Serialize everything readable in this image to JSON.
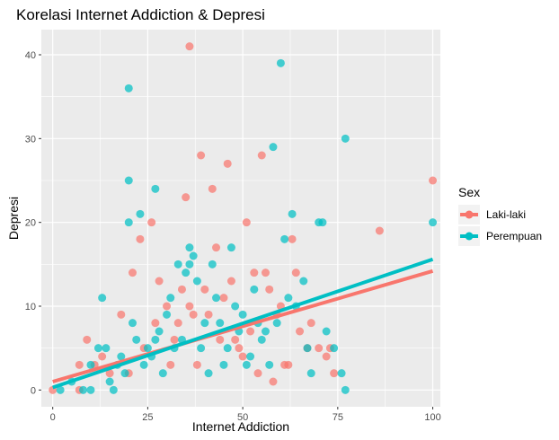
{
  "chart_data": {
    "type": "scatter",
    "title": "Korelasi Internet Addiction & Depresi",
    "xlabel": "Internet Addiction",
    "ylabel": "Depresi",
    "xlim": [
      -3,
      102
    ],
    "ylim": [
      -2,
      43
    ],
    "x_ticks": [
      0,
      25,
      50,
      75,
      100
    ],
    "y_ticks": [
      0,
      10,
      20,
      30,
      40
    ],
    "grid": true,
    "legend": {
      "title": "Sex",
      "position": "right"
    },
    "series": [
      {
        "name": "Laki-laki",
        "color": "#F8766D",
        "trend": {
          "x": [
            0,
            100
          ],
          "y": [
            1.0,
            14.2
          ]
        },
        "points": [
          [
            0,
            0
          ],
          [
            7,
            3
          ],
          [
            7,
            0
          ],
          [
            9,
            6
          ],
          [
            11,
            3
          ],
          [
            13,
            4
          ],
          [
            15,
            2
          ],
          [
            18,
            9
          ],
          [
            20,
            2
          ],
          [
            21,
            14
          ],
          [
            23,
            18
          ],
          [
            24,
            5
          ],
          [
            26,
            20
          ],
          [
            27,
            8
          ],
          [
            28,
            13
          ],
          [
            30,
            10
          ],
          [
            31,
            3
          ],
          [
            32,
            6
          ],
          [
            33,
            8
          ],
          [
            34,
            12
          ],
          [
            35,
            23
          ],
          [
            36,
            41
          ],
          [
            36,
            10
          ],
          [
            37,
            9
          ],
          [
            38,
            3
          ],
          [
            39,
            28
          ],
          [
            40,
            12
          ],
          [
            41,
            9
          ],
          [
            42,
            24
          ],
          [
            43,
            17
          ],
          [
            44,
            6
          ],
          [
            45,
            11
          ],
          [
            46,
            27
          ],
          [
            47,
            13
          ],
          [
            48,
            6
          ],
          [
            49,
            5
          ],
          [
            50,
            4
          ],
          [
            51,
            20
          ],
          [
            52,
            7
          ],
          [
            53,
            14
          ],
          [
            54,
            2
          ],
          [
            55,
            28
          ],
          [
            56,
            14
          ],
          [
            57,
            12
          ],
          [
            58,
            1
          ],
          [
            59,
            9
          ],
          [
            60,
            10
          ],
          [
            61,
            3
          ],
          [
            62,
            3
          ],
          [
            63,
            18
          ],
          [
            64,
            14
          ],
          [
            65,
            7
          ],
          [
            67,
            5
          ],
          [
            68,
            8
          ],
          [
            70,
            5
          ],
          [
            72,
            4
          ],
          [
            73,
            5
          ],
          [
            74,
            2
          ],
          [
            86,
            19
          ],
          [
            100,
            25
          ]
        ]
      },
      {
        "name": "Perempuan",
        "color": "#00BFC4",
        "trend": {
          "x": [
            0,
            100
          ],
          "y": [
            0.3,
            15.6
          ]
        },
        "points": [
          [
            2,
            0
          ],
          [
            5,
            1
          ],
          [
            8,
            0
          ],
          [
            10,
            0
          ],
          [
            10,
            3
          ],
          [
            12,
            5
          ],
          [
            13,
            11
          ],
          [
            14,
            5
          ],
          [
            15,
            1
          ],
          [
            16,
            0
          ],
          [
            17,
            3
          ],
          [
            18,
            4
          ],
          [
            19,
            2
          ],
          [
            20,
            36
          ],
          [
            20,
            25
          ],
          [
            20,
            20
          ],
          [
            21,
            8
          ],
          [
            22,
            6
          ],
          [
            23,
            21
          ],
          [
            24,
            3
          ],
          [
            25,
            5
          ],
          [
            26,
            4
          ],
          [
            27,
            24
          ],
          [
            27,
            6
          ],
          [
            28,
            7
          ],
          [
            29,
            2
          ],
          [
            30,
            9
          ],
          [
            31,
            11
          ],
          [
            32,
            5
          ],
          [
            33,
            15
          ],
          [
            34,
            6
          ],
          [
            35,
            14
          ],
          [
            36,
            17
          ],
          [
            36,
            15
          ],
          [
            37,
            16
          ],
          [
            38,
            13
          ],
          [
            39,
            5
          ],
          [
            40,
            8
          ],
          [
            41,
            2
          ],
          [
            42,
            15
          ],
          [
            43,
            11
          ],
          [
            44,
            8
          ],
          [
            45,
            3
          ],
          [
            46,
            5
          ],
          [
            47,
            17
          ],
          [
            48,
            10
          ],
          [
            49,
            7
          ],
          [
            50,
            9
          ],
          [
            51,
            3
          ],
          [
            52,
            4
          ],
          [
            53,
            12
          ],
          [
            54,
            8
          ],
          [
            55,
            6
          ],
          [
            56,
            7
          ],
          [
            57,
            3
          ],
          [
            58,
            29
          ],
          [
            59,
            8
          ],
          [
            60,
            39
          ],
          [
            61,
            18
          ],
          [
            62,
            11
          ],
          [
            63,
            21
          ],
          [
            64,
            10
          ],
          [
            66,
            13
          ],
          [
            67,
            5
          ],
          [
            68,
            2
          ],
          [
            70,
            20
          ],
          [
            71,
            20
          ],
          [
            72,
            7
          ],
          [
            74,
            5
          ],
          [
            76,
            2
          ],
          [
            77,
            30
          ],
          [
            77,
            0
          ],
          [
            100,
            20
          ]
        ]
      }
    ]
  }
}
